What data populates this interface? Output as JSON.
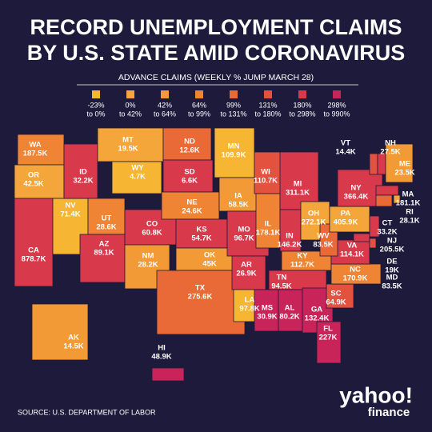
{
  "header": {
    "title_line1": "RECORD UNEMPLOYMENT CLAIMS",
    "title_line2": "BY U.S. STATE AMID CORONAVIRUS"
  },
  "legend": {
    "title": "ADVANCE CLAIMS (WEEKLY % JUMP MARCH 28)",
    "bins": [
      {
        "from": "-23%",
        "to": "to 0%",
        "color": "#f6b532"
      },
      {
        "from": "0%",
        "to": "to 42%",
        "color": "#f4a63a"
      },
      {
        "from": "42%",
        "to": "to 64%",
        "color": "#f29a35"
      },
      {
        "from": "64%",
        "to": "to 99%",
        "color": "#ef8434"
      },
      {
        "from": "99%",
        "to": "to 131%",
        "color": "#e96a36"
      },
      {
        "from": "131%",
        "to": "to 180%",
        "color": "#e2523f"
      },
      {
        "from": "180%",
        "to": "to 298%",
        "color": "#d83a4c"
      },
      {
        "from": "298%",
        "to": "to 990%",
        "color": "#c9245a"
      }
    ]
  },
  "states": [
    {
      "abbr": "WA",
      "claims": "187.5K",
      "color": "#ef8434"
    },
    {
      "abbr": "OR",
      "claims": "42.5K",
      "color": "#f4a63a"
    },
    {
      "abbr": "CA",
      "claims": "878.7K",
      "color": "#d83a4c"
    },
    {
      "abbr": "NV",
      "claims": "71.4K",
      "color": "#f6b532"
    },
    {
      "abbr": "ID",
      "claims": "32.2K",
      "color": "#d83a4c"
    },
    {
      "abbr": "MT",
      "claims": "19.5K",
      "color": "#f4a63a"
    },
    {
      "abbr": "WY",
      "claims": "4.7K",
      "color": "#f6b532"
    },
    {
      "abbr": "UT",
      "claims": "28.6K",
      "color": "#ef8434"
    },
    {
      "abbr": "AZ",
      "claims": "89.1K",
      "color": "#d83a4c"
    },
    {
      "abbr": "CO",
      "claims": "60.8K",
      "color": "#d83a4c"
    },
    {
      "abbr": "NM",
      "claims": "28.2K",
      "color": "#f29a35"
    },
    {
      "abbr": "ND",
      "claims": "12.6K",
      "color": "#e96a36"
    },
    {
      "abbr": "SD",
      "claims": "6.6K",
      "color": "#d83a4c"
    },
    {
      "abbr": "NE",
      "claims": "24.6K",
      "color": "#ef8434"
    },
    {
      "abbr": "KS",
      "claims": "54.7K",
      "color": "#d83a4c"
    },
    {
      "abbr": "OK",
      "claims": "45K",
      "color": "#f29a35"
    },
    {
      "abbr": "TX",
      "claims": "275.6K",
      "color": "#e96a36"
    },
    {
      "abbr": "MN",
      "claims": "109.9K",
      "color": "#f6b532"
    },
    {
      "abbr": "IA",
      "claims": "58.5K",
      "color": "#f29a35"
    },
    {
      "abbr": "MO",
      "claims": "96.7K",
      "color": "#d83a4c"
    },
    {
      "abbr": "AR",
      "claims": "26.9K",
      "color": "#d83a4c"
    },
    {
      "abbr": "LA",
      "claims": "97.8K",
      "color": "#f6b532"
    },
    {
      "abbr": "WI",
      "claims": "110.7K",
      "color": "#e2523f"
    },
    {
      "abbr": "IL",
      "claims": "178.1K",
      "color": "#ef8434"
    },
    {
      "abbr": "MI",
      "claims": "311.1K",
      "color": "#d83a4c"
    },
    {
      "abbr": "IN",
      "claims": "146.2K",
      "color": "#d83a4c"
    },
    {
      "abbr": "OH",
      "claims": "272.1K",
      "color": "#f4a63a"
    },
    {
      "abbr": "KY",
      "claims": "112.7K",
      "color": "#ef8434"
    },
    {
      "abbr": "TN",
      "claims": "94.5K",
      "color": "#d83a4c"
    },
    {
      "abbr": "MS",
      "claims": "30.9K",
      "color": "#c9245a"
    },
    {
      "abbr": "AL",
      "claims": "80.2K",
      "color": "#c9245a"
    },
    {
      "abbr": "GA",
      "claims": "132.4K",
      "color": "#c9245a"
    },
    {
      "abbr": "FL",
      "claims": "227K",
      "color": "#c9245a"
    },
    {
      "abbr": "SC",
      "claims": "64.9K",
      "color": "#e2523f"
    },
    {
      "abbr": "NC",
      "claims": "170.9K",
      "color": "#ef8434"
    },
    {
      "abbr": "VA",
      "claims": "114.1K",
      "color": "#d83a4c"
    },
    {
      "abbr": "WV",
      "claims": "83.5K",
      "color": "#e96a36"
    },
    {
      "abbr": "PA",
      "claims": "405.9K",
      "color": "#f4a63a"
    },
    {
      "abbr": "NY",
      "claims": "366.4K",
      "color": "#d83a4c"
    },
    {
      "abbr": "VT",
      "claims": "14.4K",
      "color": "#e2523f"
    },
    {
      "abbr": "NH",
      "claims": "27.5K",
      "color": "#d83a4c"
    },
    {
      "abbr": "ME",
      "claims": "23.5K",
      "color": "#f29a35"
    },
    {
      "abbr": "MA",
      "claims": "181.1K",
      "color": "#d83a4c"
    },
    {
      "abbr": "RI",
      "claims": "28.1K",
      "color": "#f4a63a"
    },
    {
      "abbr": "CT",
      "claims": "33.2K",
      "color": "#e96a36"
    },
    {
      "abbr": "NJ",
      "claims": "205.5K",
      "color": "#d83a4c"
    },
    {
      "abbr": "DE",
      "claims": "19K",
      "color": "#e2523f"
    },
    {
      "abbr": "MD",
      "claims": "83.5K",
      "color": "#d83a4c"
    },
    {
      "abbr": "AK",
      "claims": "14.5K",
      "color": "#f29a35"
    },
    {
      "abbr": "HI",
      "claims": "48.9K",
      "color": "#c9245a"
    }
  ],
  "footer": {
    "source": "SOURCE:  U.S. DEPARTMENT OF LABOR",
    "logo_main": "yahoo!",
    "logo_sub": "finance"
  }
}
